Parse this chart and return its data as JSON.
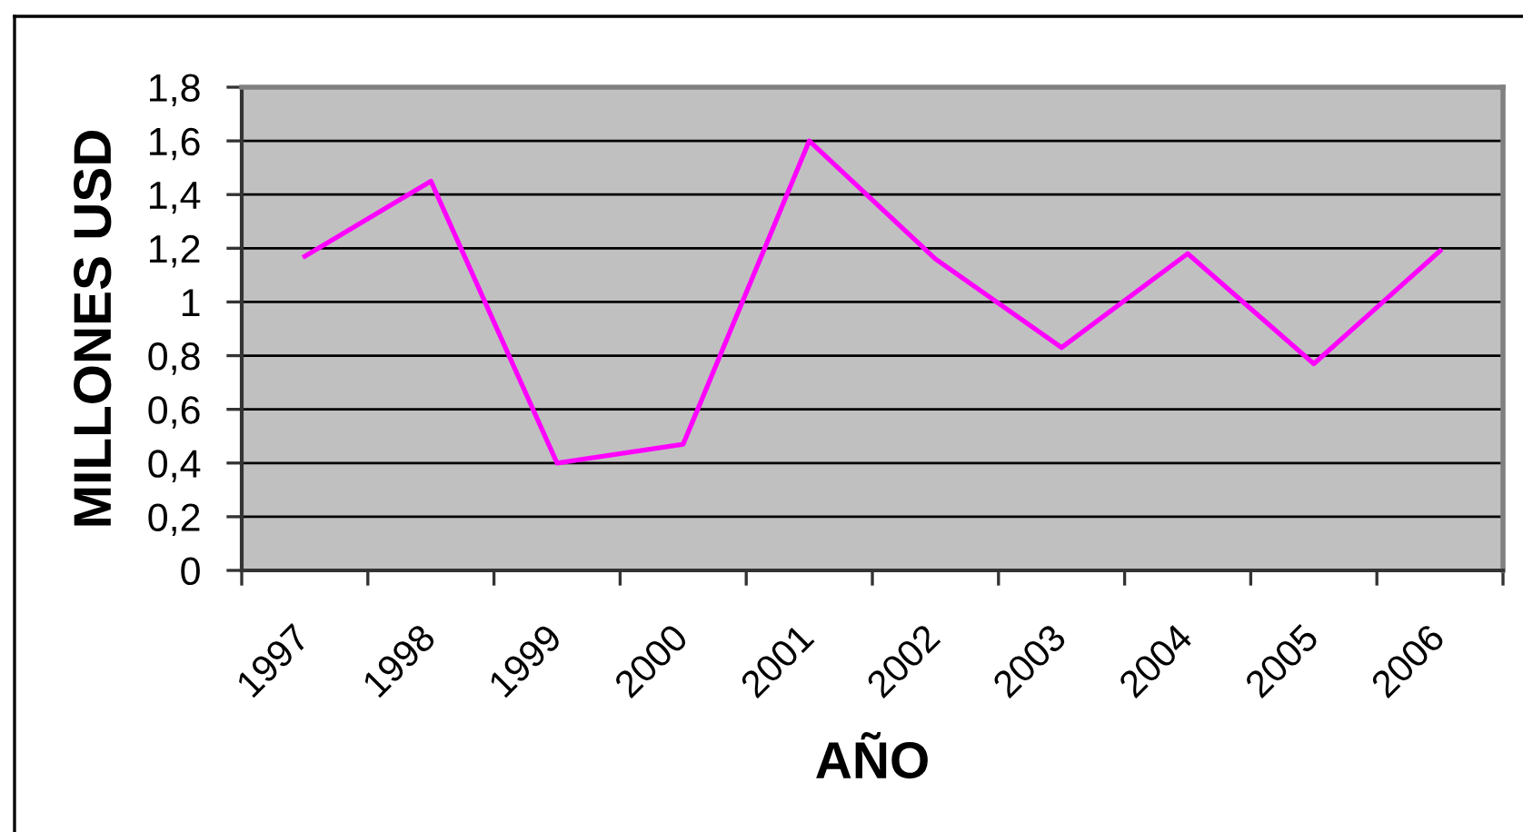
{
  "chart_data": {
    "type": "line",
    "xlabel": "AÑO",
    "ylabel": "MILLONES USD",
    "categories": [
      "1997",
      "1998",
      "1999",
      "2000",
      "2001",
      "2002",
      "2003",
      "2004",
      "2005",
      "2006"
    ],
    "series": [
      {
        "color": "#ff00ff",
        "values": [
          1.17,
          1.45,
          0.4,
          0.47,
          1.6,
          1.16,
          0.83,
          1.18,
          0.77,
          1.19
        ]
      }
    ],
    "ylim": [
      0,
      1.8
    ],
    "yticks": [
      0,
      {
        "value": 0.2,
        "label": "0,2"
      },
      {
        "value": 0.4,
        "label": "0,4"
      },
      {
        "value": 0.6,
        "label": "0,6"
      },
      {
        "value": 0.8,
        "label": "0,8"
      },
      1,
      {
        "value": 1.2,
        "label": "1,2"
      },
      {
        "value": 1.4,
        "label": "1,4"
      },
      {
        "value": 1.6,
        "label": "1,6"
      },
      {
        "value": 1.8,
        "label": "1,8"
      }
    ],
    "grid": "y",
    "marker": "none",
    "line_style": "solid"
  }
}
